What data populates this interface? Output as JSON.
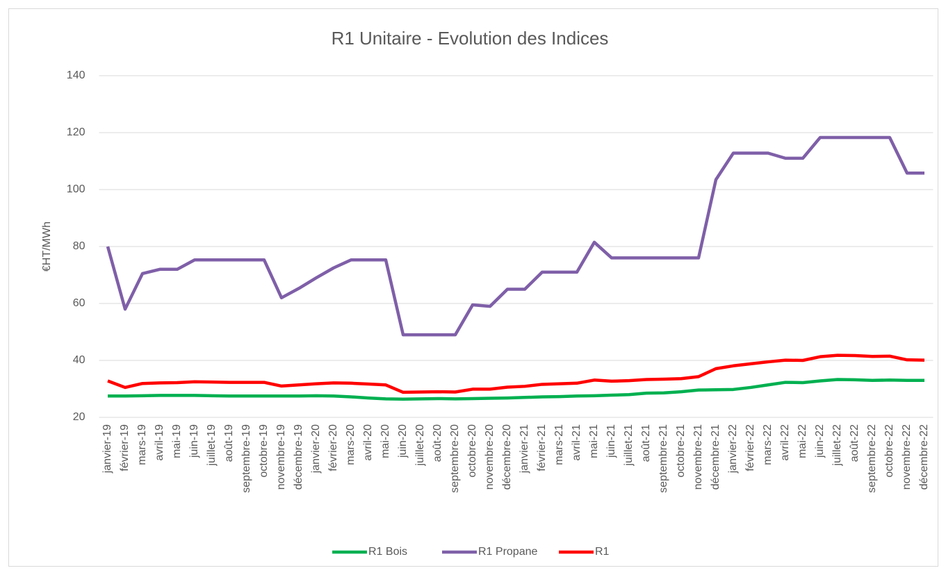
{
  "chart_data": {
    "type": "line",
    "title": "R1 Unitaire - Evolution des Indices",
    "ylabel": "€HT/MWh",
    "categories": [
      "janvier-19",
      "février-19",
      "mars-19",
      "avril-19",
      "mai-19",
      "juin-19",
      "juillet-19",
      "août-19",
      "septembre-19",
      "octobre-19",
      "novembre-19",
      "décembre-19",
      "janvier-20",
      "février-20",
      "mars-20",
      "avril-20",
      "mai-20",
      "juin-20",
      "juillet-20",
      "août-20",
      "septembre-20",
      "octobre-20",
      "novembre-20",
      "décembre-20",
      "janvier-21",
      "février-21",
      "mars-21",
      "avril-21",
      "mai-21",
      "juin-21",
      "juillet-21",
      "août-21",
      "septembre-21",
      "octobre-21",
      "novembre-21",
      "décembre-21",
      "janvier-22",
      "février-22",
      "mars-22",
      "avril-22",
      "mai-22",
      "juin-22",
      "juillet-22",
      "août-22",
      "septembre-22",
      "octobre-22",
      "novembre-22",
      "décembre-22"
    ],
    "series": [
      {
        "name": "R1 Bois",
        "color": "#00b050",
        "values": [
          27.5,
          27.5,
          27.6,
          27.7,
          27.7,
          27.7,
          27.6,
          27.5,
          27.5,
          27.5,
          27.5,
          27.5,
          27.6,
          27.5,
          27.2,
          26.8,
          26.5,
          26.4,
          26.5,
          26.6,
          26.5,
          26.6,
          26.7,
          26.8,
          27,
          27.2,
          27.3,
          27.5,
          27.6,
          27.8,
          28,
          28.5,
          28.6,
          29,
          29.6,
          29.7,
          29.8,
          30.5,
          31.4,
          32.3,
          32.2,
          32.8,
          33.3,
          33.2,
          33,
          33.1,
          33,
          33
        ]
      },
      {
        "name": "R1 Propane",
        "color": "#7f5fa8",
        "values": [
          80,
          58,
          70.5,
          72,
          72,
          75.3,
          75.3,
          75.3,
          75.3,
          75.3,
          62,
          65.3,
          69,
          72.5,
          75.3,
          75.3,
          75.3,
          49,
          49,
          49,
          49,
          59.5,
          59,
          65,
          65,
          71,
          71,
          71,
          81.5,
          76,
          76,
          76,
          76,
          76,
          76,
          103.5,
          112.8,
          112.8,
          112.8,
          111,
          111,
          118.3,
          118.3,
          118.3,
          118.3,
          118.3,
          105.8,
          105.8
        ]
      },
      {
        "name": "R1",
        "color": "#ff0000",
        "values": [
          32.8,
          30.5,
          31.9,
          32.1,
          32.2,
          32.5,
          32.4,
          32.3,
          32.3,
          32.3,
          31,
          31.4,
          31.8,
          32.1,
          32,
          31.7,
          31.4,
          28.8,
          28.9,
          29,
          28.9,
          29.9,
          29.9,
          30.6,
          30.9,
          31.6,
          31.8,
          32,
          33.1,
          32.7,
          32.9,
          33.3,
          33.4,
          33.6,
          34.3,
          37.1,
          38.1,
          38.8,
          39.5,
          40.1,
          40,
          41.3,
          41.8,
          41.7,
          41.4,
          41.5,
          40.2,
          40.1
        ]
      }
    ],
    "ylim": [
      20,
      140
    ],
    "yticks": [
      20,
      40,
      60,
      80,
      100,
      120,
      140
    ],
    "grid": true,
    "legend": "bottom"
  }
}
